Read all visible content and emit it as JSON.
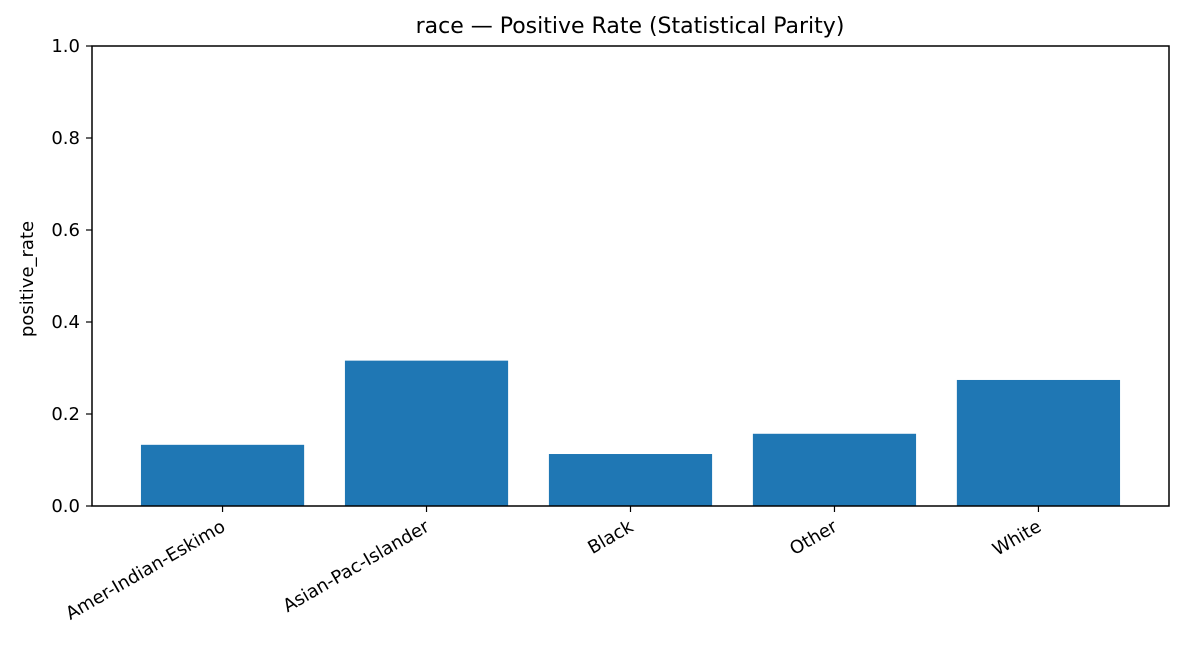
{
  "chart_data": {
    "type": "bar",
    "title": "race — Positive Rate (Statistical Parity)",
    "xlabel": "",
    "ylabel": "positive_rate",
    "categories": [
      "Amer-Indian-Eskimo",
      "Asian-Pac-Islander",
      "Black",
      "Other",
      "White"
    ],
    "values": [
      0.133,
      0.316,
      0.113,
      0.157,
      0.274
    ],
    "ylim": [
      0,
      1.0
    ],
    "yticks": [
      "0.0",
      "0.2",
      "0.4",
      "0.6",
      "0.8",
      "1.0"
    ],
    "grid": false,
    "bar_color": "#1f77b4"
  }
}
